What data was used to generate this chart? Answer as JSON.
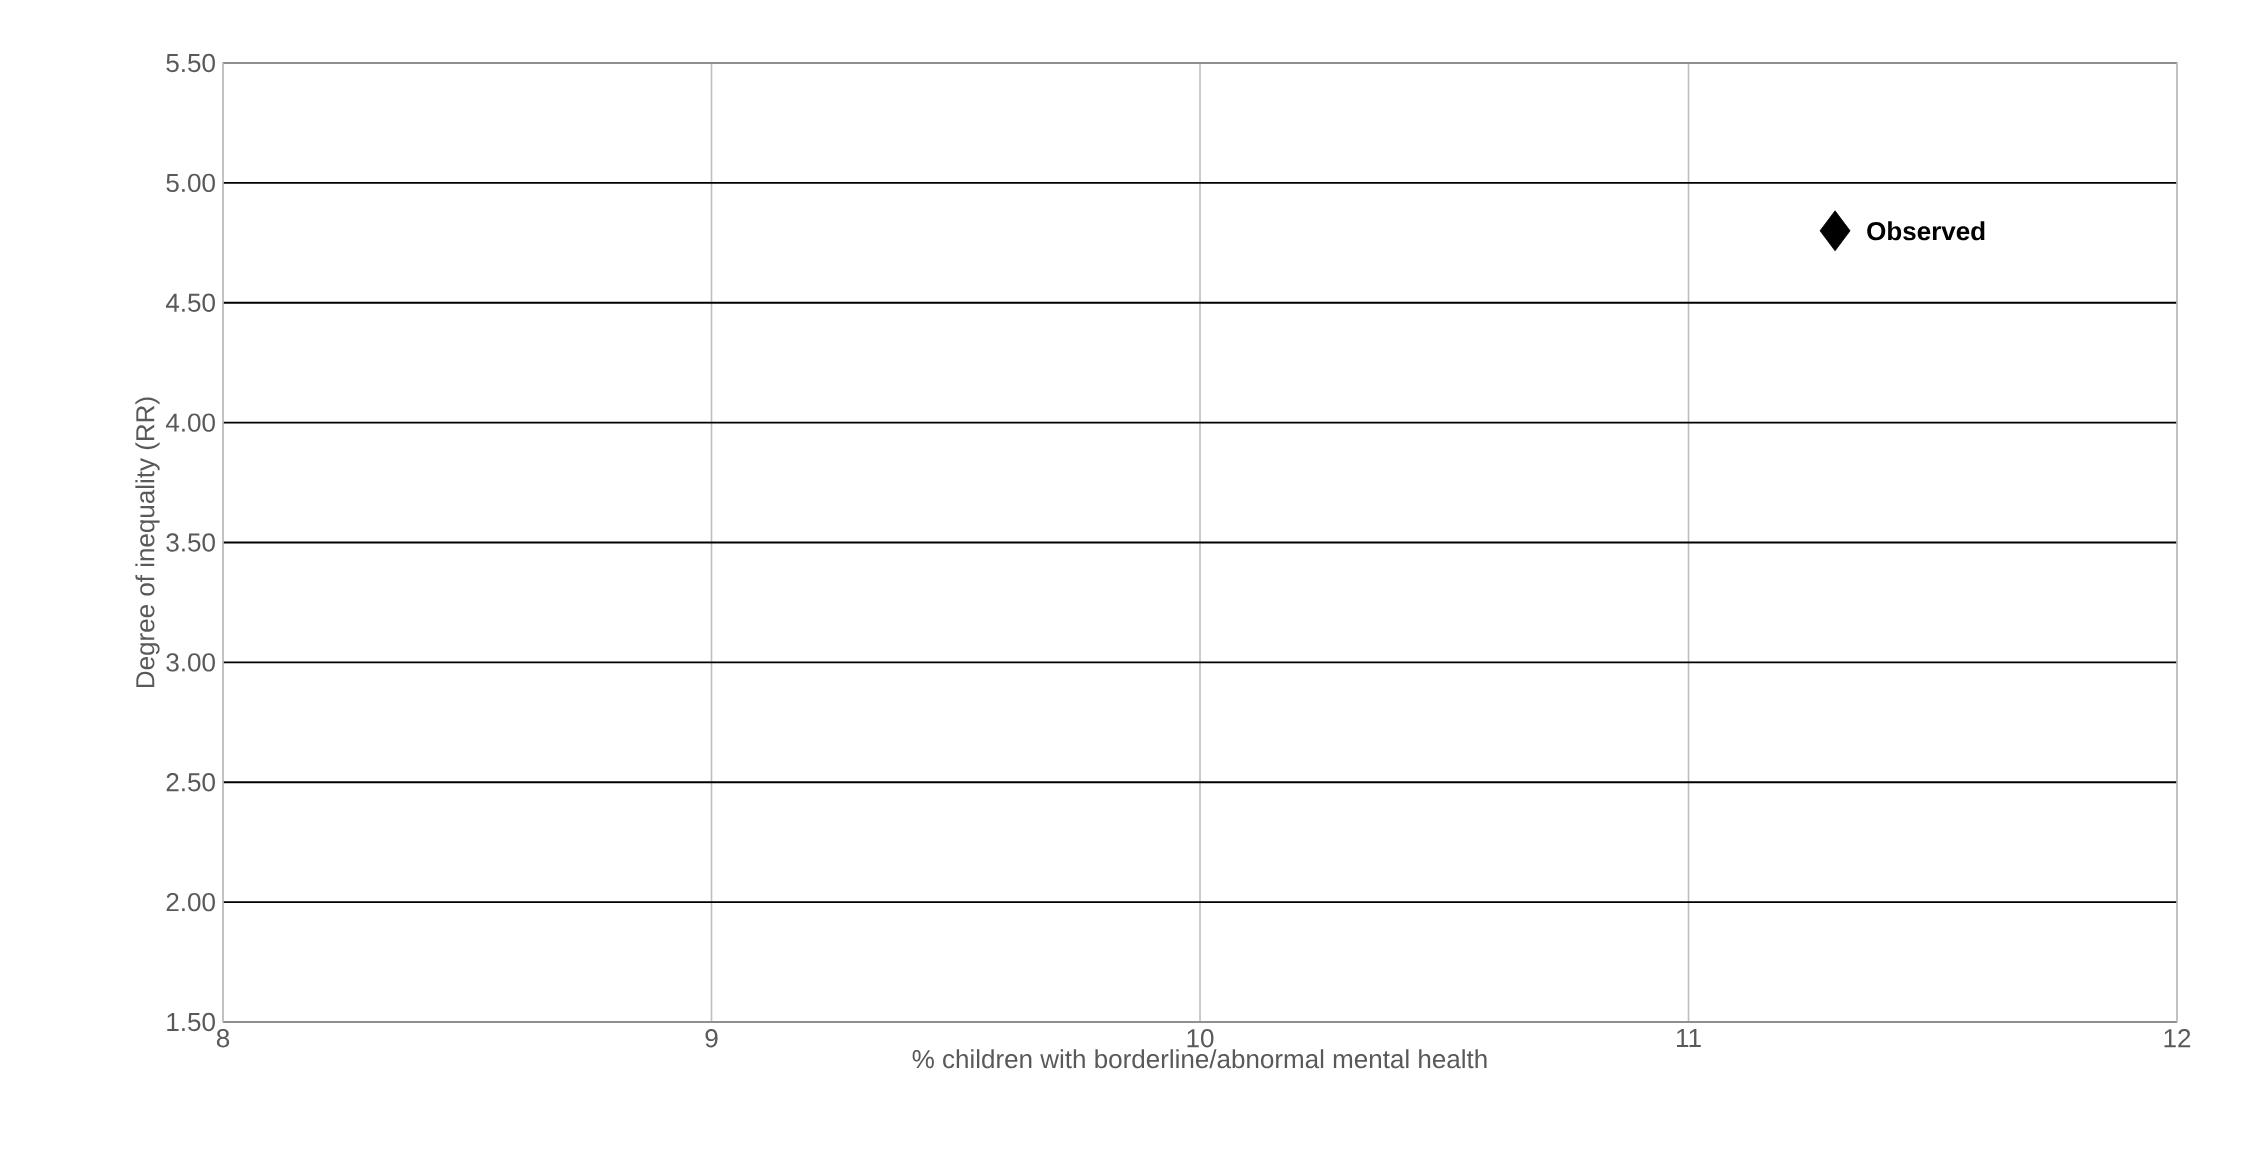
{
  "chart_data": {
    "type": "scatter",
    "xlabel": "% children with borderline/abnormal  mental health",
    "ylabel": "Degree of inequality (RR)",
    "x": [
      11.3
    ],
    "series": [
      {
        "name": "Observed",
        "color": "#000000",
        "values": [
          4.8
        ]
      }
    ],
    "marker": "diamond",
    "grid": true,
    "xlim": [
      8,
      12
    ],
    "xticks": [
      8,
      9,
      10,
      11,
      12
    ],
    "ylim": [
      1.5,
      5.5
    ],
    "yticks": [
      {
        "value": 1.5,
        "label": "1.50"
      },
      {
        "value": 2,
        "label": "2.00"
      },
      {
        "value": 2.5,
        "label": "2.50"
      },
      {
        "value": 3,
        "label": "3.00"
      },
      {
        "value": 3.5,
        "label": "3.50"
      },
      {
        "value": 4,
        "label": "4.00"
      },
      {
        "value": 4.5,
        "label": "4.50"
      },
      {
        "value": 5,
        "label": "5.00"
      },
      {
        "value": 5.5,
        "label": "5.50"
      }
    ]
  }
}
